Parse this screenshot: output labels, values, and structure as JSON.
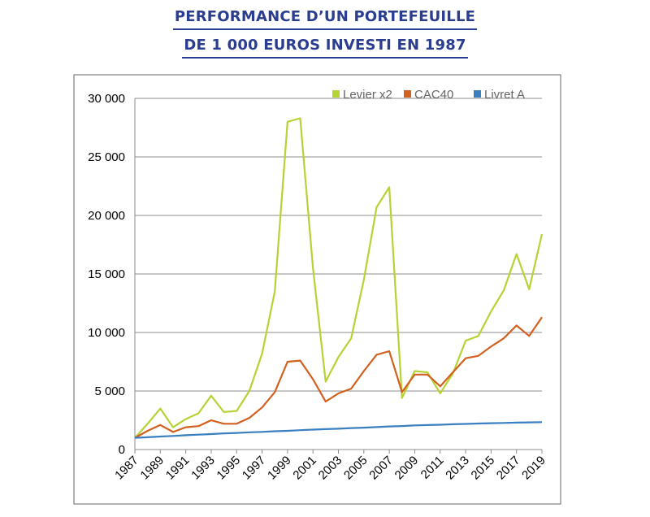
{
  "title_lines": [
    "PERFORMANCE D’UN PORTEFEUILLE",
    "DE 1 000 EUROS INVESTI EN 1987"
  ],
  "chart_data": {
    "type": "line",
    "x": [
      1987,
      1988,
      1989,
      1990,
      1991,
      1992,
      1993,
      1994,
      1995,
      1996,
      1997,
      1998,
      1999,
      2000,
      2001,
      2002,
      2003,
      2004,
      2005,
      2006,
      2007,
      2008,
      2009,
      2010,
      2011,
      2012,
      2013,
      2014,
      2015,
      2016,
      2017,
      2018,
      2019
    ],
    "x_tick_labels": [
      "1987",
      "1989",
      "1991",
      "1993",
      "1995",
      "1997",
      "1999",
      "2001",
      "2003",
      "2005",
      "2007",
      "2009",
      "2011",
      "2013",
      "2015",
      "2017",
      "2019"
    ],
    "ylim": [
      0,
      30000
    ],
    "y_ticks": [
      0,
      5000,
      10000,
      15000,
      20000,
      25000,
      30000
    ],
    "y_tick_labels": [
      "0",
      "5 000",
      "10 000",
      "15 000",
      "20 000",
      "25 000",
      "30 000"
    ],
    "grid": true,
    "legend_position": "top-right",
    "series": [
      {
        "name": "Levier x2",
        "color": "#b5d334",
        "values": [
          1000,
          2200,
          3500,
          1900,
          2600,
          3100,
          4600,
          3200,
          3300,
          5000,
          8200,
          13500,
          28000,
          28300,
          15500,
          5800,
          7900,
          9500,
          14500,
          20700,
          22400,
          4400,
          6700,
          6600,
          4800,
          6500,
          9300,
          9700,
          11800,
          13600,
          16700,
          13700,
          18400
        ]
      },
      {
        "name": "CAC40",
        "color": "#d2601f",
        "values": [
          1000,
          1600,
          2100,
          1500,
          1900,
          2000,
          2500,
          2200,
          2200,
          2700,
          3600,
          4900,
          7500,
          7600,
          6000,
          4100,
          4800,
          5200,
          6700,
          8100,
          8400,
          4900,
          6400,
          6400,
          5400,
          6600,
          7800,
          8000,
          8800,
          9500,
          10600,
          9700,
          11300
        ]
      },
      {
        "name": "Livret A",
        "color": "#3a7fc1",
        "values": [
          1000,
          1050,
          1110,
          1160,
          1220,
          1270,
          1320,
          1380,
          1420,
          1470,
          1510,
          1560,
          1600,
          1650,
          1700,
          1740,
          1780,
          1830,
          1870,
          1920,
          1970,
          2010,
          2060,
          2090,
          2120,
          2160,
          2190,
          2220,
          2250,
          2270,
          2300,
          2320,
          2340
        ]
      }
    ]
  }
}
